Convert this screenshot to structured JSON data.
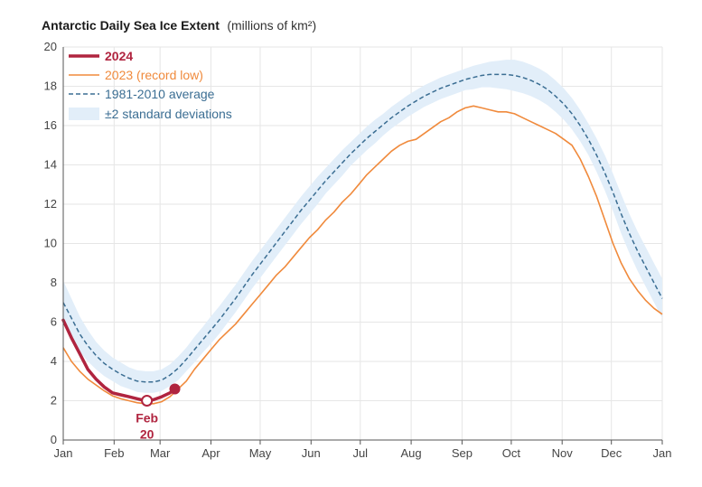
{
  "chart_data": {
    "type": "line",
    "title": "Antarctic Daily Sea Ice Extent",
    "units": "(millions of km²)",
    "ylim": [
      0,
      20
    ],
    "yticks": [
      0,
      2,
      4,
      6,
      8,
      10,
      12,
      14,
      16,
      18,
      20
    ],
    "xlim": [
      0,
      365
    ],
    "xticks": [
      {
        "label": "Jan",
        "day": 0
      },
      {
        "label": "Feb",
        "day": 31
      },
      {
        "label": "Mar",
        "day": 59
      },
      {
        "label": "Apr",
        "day": 90
      },
      {
        "label": "May",
        "day": 120
      },
      {
        "label": "Jun",
        "day": 151
      },
      {
        "label": "Jul",
        "day": 181
      },
      {
        "label": "Aug",
        "day": 212
      },
      {
        "label": "Sep",
        "day": 243
      },
      {
        "label": "Oct",
        "day": 273
      },
      {
        "label": "Nov",
        "day": 304
      },
      {
        "label": "Dec",
        "day": 334
      },
      {
        "label": "Jan",
        "day": 365
      }
    ],
    "grid": true,
    "legend_position": "top-left",
    "series": [
      {
        "name": "2024",
        "color": "#b0243f",
        "x": [
          0,
          5,
          10,
          15,
          20,
          25,
          30,
          35,
          40,
          45,
          50,
          55,
          60,
          65,
          68
        ],
        "y": [
          6.1,
          5.2,
          4.4,
          3.6,
          3.1,
          2.7,
          2.4,
          2.3,
          2.2,
          2.1,
          2.0,
          2.05,
          2.2,
          2.4,
          2.6
        ]
      },
      {
        "name": "2023 (record low)",
        "color": "#f08a3c",
        "x": [
          0,
          5,
          10,
          15,
          20,
          25,
          30,
          35,
          40,
          45,
          50,
          55,
          60,
          65,
          70,
          75,
          80,
          85,
          90,
          95,
          100,
          105,
          110,
          115,
          120,
          125,
          130,
          135,
          140,
          145,
          150,
          155,
          160,
          165,
          170,
          175,
          180,
          185,
          190,
          195,
          200,
          205,
          210,
          215,
          220,
          225,
          230,
          235,
          240,
          245,
          250,
          255,
          260,
          265,
          270,
          275,
          280,
          285,
          290,
          295,
          300,
          305,
          310,
          315,
          320,
          325,
          330,
          335,
          340,
          345,
          350,
          355,
          360,
          365
        ],
        "y": [
          4.7,
          4.0,
          3.5,
          3.1,
          2.8,
          2.5,
          2.25,
          2.1,
          2.0,
          1.9,
          1.85,
          1.85,
          1.95,
          2.2,
          2.6,
          3.0,
          3.6,
          4.1,
          4.6,
          5.1,
          5.5,
          5.9,
          6.4,
          6.9,
          7.4,
          7.9,
          8.4,
          8.8,
          9.3,
          9.8,
          10.3,
          10.7,
          11.2,
          11.6,
          12.1,
          12.5,
          13.0,
          13.5,
          13.9,
          14.3,
          14.7,
          15.0,
          15.2,
          15.3,
          15.6,
          15.9,
          16.2,
          16.4,
          16.7,
          16.9,
          17.0,
          16.9,
          16.8,
          16.7,
          16.7,
          16.6,
          16.4,
          16.2,
          16.0,
          15.8,
          15.6,
          15.3,
          15.0,
          14.3,
          13.4,
          12.4,
          11.2,
          10.0,
          9.0,
          8.2,
          7.6,
          7.1,
          6.7,
          6.4
        ]
      },
      {
        "name": "1981-2010 average",
        "color": "#3b6e93",
        "x": [
          0,
          5,
          10,
          15,
          20,
          25,
          30,
          35,
          40,
          45,
          50,
          55,
          60,
          65,
          70,
          75,
          80,
          85,
          90,
          95,
          100,
          105,
          110,
          115,
          120,
          125,
          130,
          135,
          140,
          145,
          150,
          155,
          160,
          165,
          170,
          175,
          180,
          185,
          190,
          195,
          200,
          205,
          210,
          215,
          220,
          225,
          230,
          235,
          240,
          245,
          250,
          255,
          260,
          265,
          270,
          275,
          280,
          285,
          290,
          295,
          300,
          305,
          310,
          315,
          320,
          325,
          330,
          335,
          340,
          345,
          350,
          355,
          360,
          365
        ],
        "y": [
          7.0,
          6.2,
          5.4,
          4.8,
          4.3,
          3.9,
          3.6,
          3.35,
          3.15,
          3.0,
          2.95,
          2.95,
          3.05,
          3.3,
          3.65,
          4.1,
          4.6,
          5.1,
          5.6,
          6.1,
          6.65,
          7.2,
          7.8,
          8.4,
          8.95,
          9.5,
          10.05,
          10.6,
          11.15,
          11.7,
          12.2,
          12.7,
          13.2,
          13.65,
          14.1,
          14.55,
          14.95,
          15.35,
          15.7,
          16.05,
          16.4,
          16.7,
          17.0,
          17.25,
          17.5,
          17.7,
          17.9,
          18.05,
          18.2,
          18.35,
          18.45,
          18.55,
          18.6,
          18.6,
          18.6,
          18.55,
          18.45,
          18.3,
          18.1,
          17.85,
          17.5,
          17.1,
          16.6,
          16.0,
          15.3,
          14.5,
          13.6,
          12.6,
          11.5,
          10.5,
          9.6,
          8.8,
          8.0,
          7.2
        ]
      }
    ],
    "band": {
      "name": "±2 standard deviations",
      "color": "#e2eef9",
      "half_width": [
        1.1,
        1.0,
        0.9,
        0.8,
        0.7,
        0.65,
        0.6,
        0.6,
        0.55,
        0.55,
        0.55,
        0.55,
        0.55,
        0.55,
        0.6,
        0.6,
        0.65,
        0.65,
        0.7,
        0.7,
        0.7,
        0.7,
        0.7,
        0.7,
        0.7,
        0.7,
        0.7,
        0.7,
        0.7,
        0.7,
        0.7,
        0.7,
        0.65,
        0.65,
        0.65,
        0.6,
        0.6,
        0.6,
        0.6,
        0.55,
        0.55,
        0.55,
        0.55,
        0.55,
        0.55,
        0.55,
        0.55,
        0.55,
        0.55,
        0.55,
        0.6,
        0.6,
        0.65,
        0.7,
        0.75,
        0.8,
        0.8,
        0.8,
        0.8,
        0.8,
        0.8,
        0.8,
        0.8,
        0.8,
        0.8,
        0.85,
        0.9,
        0.95,
        1.0,
        1.0,
        1.0,
        1.0,
        1.0,
        1.0
      ]
    },
    "markers": [
      {
        "series": "2024",
        "x": 51,
        "y": 2.0,
        "style": "open-circle",
        "label_line1": "Feb",
        "label_line2": "20"
      },
      {
        "series": "2024",
        "x": 68,
        "y": 2.6,
        "style": "filled-circle"
      }
    ]
  }
}
